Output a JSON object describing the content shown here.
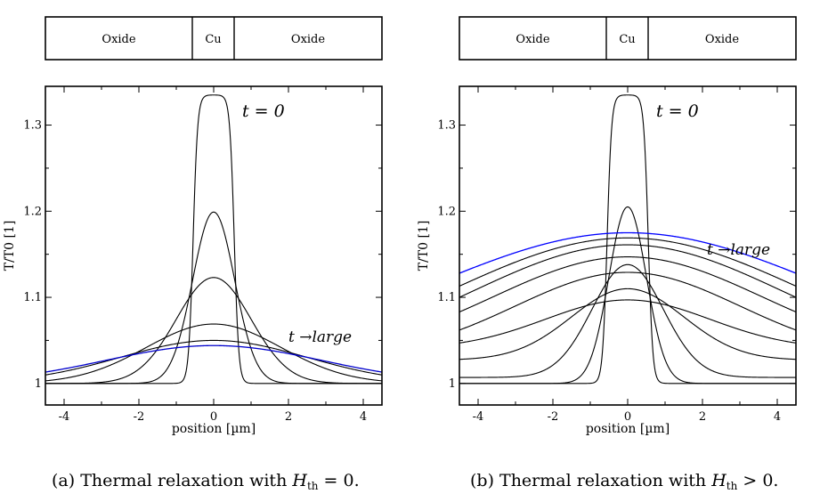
{
  "figure": {
    "panels": [
      {
        "layer_labels": [
          "Oxide",
          "Cu",
          "Oxide"
        ],
        "caption": {
          "prefix": "(a) Thermal relaxation with",
          "symbol": "H",
          "subscript": "th",
          "relation": "= 0."
        }
      },
      {
        "layer_labels": [
          "Oxide",
          "Cu",
          "Oxide"
        ],
        "caption": {
          "prefix": "(b) Thermal relaxation with",
          "symbol": "H",
          "subscript": "th",
          "relation": "> 0."
        }
      }
    ]
  },
  "chart_data": [
    {
      "type": "line",
      "xlabel": "position [µm]",
      "ylabel": "T/T0 [1]",
      "xlim": [
        -4.5,
        4.5
      ],
      "ylim": [
        0.975,
        1.345
      ],
      "xticks": [
        -4,
        -2,
        0,
        2,
        4
      ],
      "yticks": [
        1,
        1.1,
        1.2,
        1.3
      ],
      "ytick_labels": [
        "1",
        "1.1",
        "1.2",
        "1.3"
      ],
      "annotations": {
        "start": "t = 0",
        "end": "t →large"
      },
      "series": [
        {
          "kind": "plateau",
          "amplitude": 0.335,
          "halfwidth": 0.55,
          "edge": 0.06,
          "baseline": 1.0,
          "color": "#000000"
        },
        {
          "kind": "gauss",
          "peak": 1.199,
          "sigma": 0.56,
          "baseline": 1.0,
          "color": "#000000"
        },
        {
          "kind": "gauss",
          "peak": 1.123,
          "sigma": 1.0,
          "baseline": 1.0,
          "color": "#000000"
        },
        {
          "kind": "gauss",
          "peak": 1.069,
          "sigma": 1.8,
          "baseline": 1.0,
          "color": "#000000"
        },
        {
          "kind": "gauss",
          "peak": 1.05,
          "sigma": 2.5,
          "baseline": 1.0,
          "color": "#000000"
        },
        {
          "kind": "gauss",
          "peak": 1.044,
          "sigma": 2.9,
          "baseline": 1.0,
          "color": "#0000cc"
        }
      ]
    },
    {
      "type": "line",
      "xlabel": "position [µm]",
      "ylabel": "T/T0 [1]",
      "xlim": [
        -4.5,
        4.5
      ],
      "ylim": [
        0.975,
        1.345
      ],
      "xticks": [
        -4,
        -2,
        0,
        2,
        4
      ],
      "yticks": [
        1,
        1.1,
        1.2,
        1.3
      ],
      "ytick_labels": [
        "1",
        "1.1",
        "1.2",
        "1.3"
      ],
      "annotations": {
        "start": "t = 0",
        "end": "t →large"
      },
      "series": [
        {
          "kind": "plateau",
          "amplitude": 0.335,
          "halfwidth": 0.55,
          "edge": 0.06,
          "baseline": 1.0,
          "color": "#000000"
        },
        {
          "kind": "gauss",
          "peak": 1.205,
          "sigma": 0.5,
          "baseline": 1.0,
          "color": "#000000"
        },
        {
          "kind": "gauss",
          "peak": 1.138,
          "sigma": 0.95,
          "baseline": 1.0,
          "edge_value": 1.007,
          "color": "#000000"
        },
        {
          "kind": "gauss",
          "peak": 1.11,
          "sigma": 1.5,
          "baseline": 1.0,
          "edge_value": 1.028,
          "color": "#000000"
        },
        {
          "kind": "gauss",
          "peak": 1.097,
          "sigma": 2.2,
          "baseline": 1.0,
          "edge_value": 1.047,
          "color": "#000000"
        },
        {
          "kind": "gauss",
          "peak": 1.129,
          "sigma": 3.0,
          "baseline": 1.0,
          "edge_value": 1.062,
          "color": "#000000"
        },
        {
          "kind": "gauss",
          "peak": 1.147,
          "sigma": 3.6,
          "baseline": 1.0,
          "edge_value": 1.083,
          "color": "#000000"
        },
        {
          "kind": "gauss",
          "peak": 1.161,
          "sigma": 4.2,
          "baseline": 1.0,
          "edge_value": 1.1,
          "color": "#000000"
        },
        {
          "kind": "gauss",
          "peak": 1.169,
          "sigma": 4.7,
          "baseline": 1.0,
          "edge_value": 1.113,
          "color": "#000000"
        },
        {
          "kind": "gauss",
          "peak": 1.175,
          "sigma": 5.2,
          "baseline": 1.0,
          "edge_value": 1.128,
          "color": "#0000ff"
        }
      ]
    }
  ]
}
